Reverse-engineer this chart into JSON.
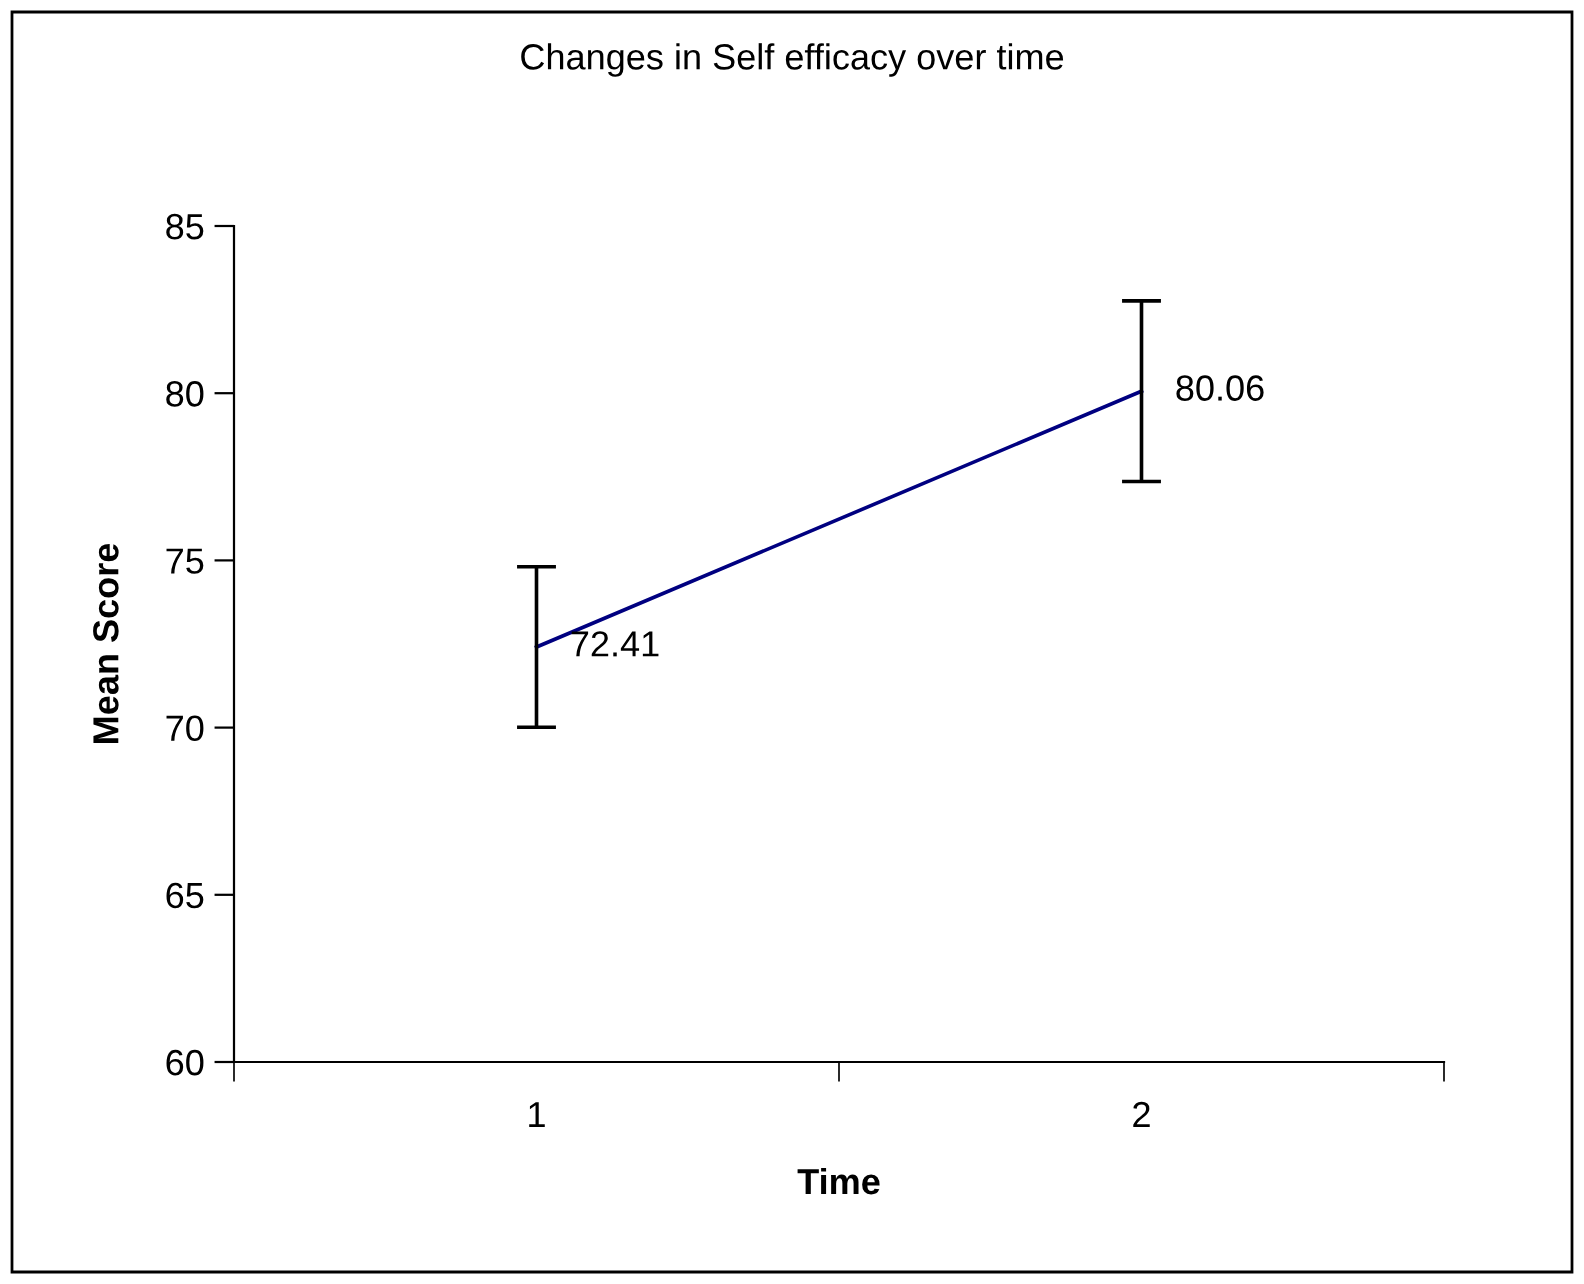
{
  "chart_data": {
    "type": "line",
    "title": "Changes in Self efficacy over time",
    "xlabel": "Time",
    "ylabel": "Mean Score",
    "categories": [
      "1",
      "2"
    ],
    "series": [
      {
        "color": "#000080",
        "values": [
          72.41,
          80.06
        ],
        "errors": [
          2.4,
          2.7
        ]
      }
    ],
    "ylim": [
      60,
      85
    ],
    "yticks": [
      60,
      65,
      70,
      75,
      80,
      85
    ],
    "grid": false,
    "legend": false,
    "marker": "none",
    "line_style": "solid",
    "data_labels": true
  }
}
